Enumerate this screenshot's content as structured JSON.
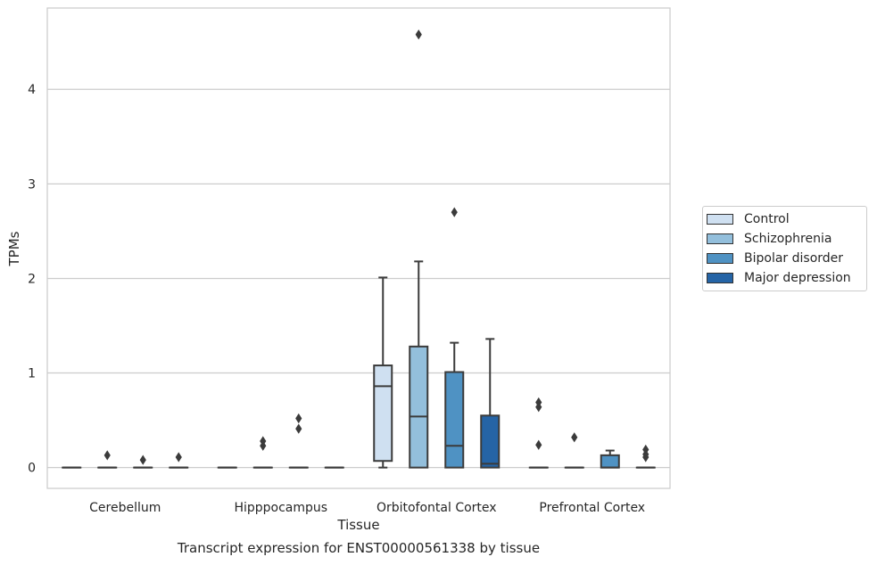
{
  "chart_data": {
    "type": "box",
    "title": "",
    "caption": "Transcript expression for ENST00000561338 by tissue",
    "xlabel": "Tissue",
    "ylabel": "TPMs",
    "ylim": [
      -0.22,
      4.86
    ],
    "yticks": [
      0,
      1,
      2,
      3,
      4
    ],
    "grid": "horizontal",
    "legend_position": "outside-right",
    "categories": [
      "Cerebellum",
      "Hipppocampus",
      "Orbitofontal Cortex",
      "Prefrontal Cortex"
    ],
    "series": [
      {
        "name": "Control",
        "color": "#cfe0f1",
        "boxes": [
          {
            "whislo": 0,
            "q1": 0,
            "med": 0,
            "q3": 0,
            "whishi": 0,
            "fliers": []
          },
          {
            "whislo": 0,
            "q1": 0,
            "med": 0,
            "q3": 0,
            "whishi": 0,
            "fliers": []
          },
          {
            "whislo": 0,
            "q1": 0.07,
            "med": 0.86,
            "q3": 1.08,
            "whishi": 2.01,
            "fliers": []
          },
          {
            "whislo": 0,
            "q1": 0,
            "med": 0,
            "q3": 0,
            "whishi": 0,
            "fliers": [
              0.24,
              0.64,
              0.69
            ]
          }
        ]
      },
      {
        "name": "Schizophrenia",
        "color": "#93bfdc",
        "boxes": [
          {
            "whislo": 0,
            "q1": 0,
            "med": 0,
            "q3": 0,
            "whishi": 0,
            "fliers": [
              0.13
            ]
          },
          {
            "whislo": 0,
            "q1": 0,
            "med": 0,
            "q3": 0,
            "whishi": 0,
            "fliers": [
              0.23,
              0.28
            ]
          },
          {
            "whislo": 0,
            "q1": 0,
            "med": 0.54,
            "q3": 1.28,
            "whishi": 2.18,
            "fliers": [
              4.58
            ]
          },
          {
            "whislo": 0,
            "q1": 0,
            "med": 0,
            "q3": 0,
            "whishi": 0,
            "fliers": [
              0.32
            ]
          }
        ]
      },
      {
        "name": "Bipolar disorder",
        "color": "#4f92c3",
        "boxes": [
          {
            "whislo": 0,
            "q1": 0,
            "med": 0,
            "q3": 0,
            "whishi": 0,
            "fliers": [
              0.08
            ]
          },
          {
            "whislo": 0,
            "q1": 0,
            "med": 0,
            "q3": 0,
            "whishi": 0,
            "fliers": [
              0.41,
              0.52
            ]
          },
          {
            "whislo": 0,
            "q1": 0,
            "med": 0.23,
            "q3": 1.01,
            "whishi": 1.32,
            "fliers": [
              2.7
            ]
          },
          {
            "whislo": 0,
            "q1": 0,
            "med": 0,
            "q3": 0.13,
            "whishi": 0.18,
            "fliers": []
          }
        ]
      },
      {
        "name": "Major depression",
        "color": "#2564a6",
        "boxes": [
          {
            "whislo": 0,
            "q1": 0,
            "med": 0,
            "q3": 0,
            "whishi": 0,
            "fliers": [
              0.11
            ]
          },
          {
            "whislo": 0,
            "q1": 0,
            "med": 0,
            "q3": 0,
            "whishi": 0,
            "fliers": []
          },
          {
            "whislo": 0,
            "q1": 0,
            "med": 0.04,
            "q3": 0.55,
            "whishi": 1.36,
            "fliers": []
          },
          {
            "whislo": 0,
            "q1": 0,
            "med": 0,
            "q3": 0,
            "whishi": 0,
            "fliers": [
              0.11,
              0.14,
              0.19
            ]
          }
        ]
      }
    ]
  }
}
